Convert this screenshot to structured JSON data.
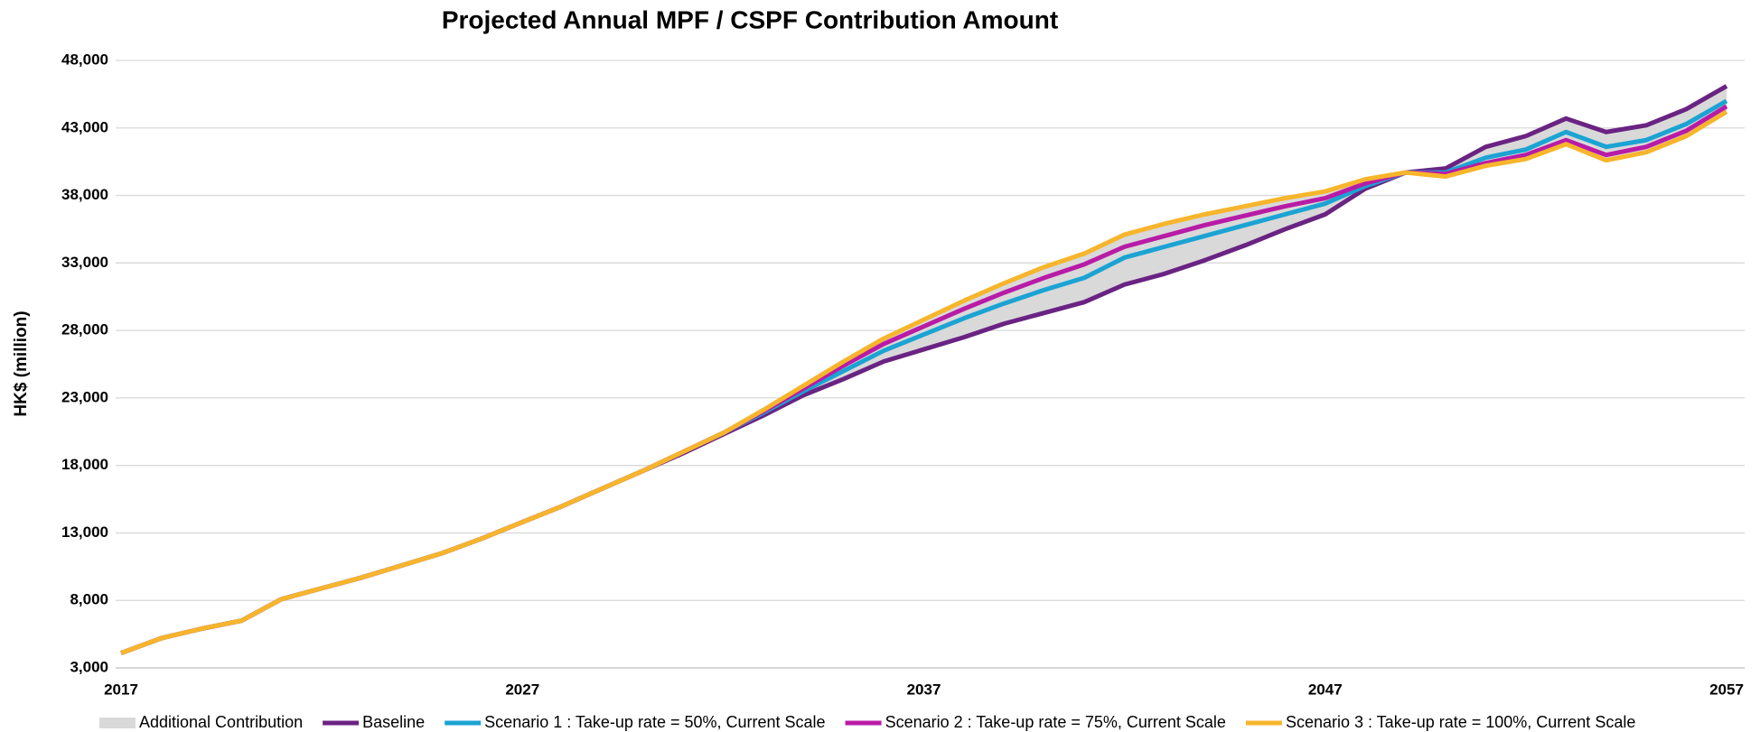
{
  "chart_data": {
    "type": "line",
    "title": "Projected Annual MPF / CSPF Contribution Amount",
    "y_label": "HK$ (million)",
    "x": [
      2017,
      2018,
      2019,
      2020,
      2021,
      2022,
      2023,
      2024,
      2025,
      2026,
      2027,
      2028,
      2029,
      2030,
      2031,
      2032,
      2033,
      2034,
      2035,
      2036,
      2037,
      2038,
      2039,
      2040,
      2041,
      2042,
      2043,
      2044,
      2045,
      2046,
      2047,
      2048,
      2049,
      2050,
      2051,
      2052,
      2053,
      2054,
      2055,
      2056,
      2057
    ],
    "xlim": [
      2017,
      2057
    ],
    "xticks": [
      2017,
      2027,
      2037,
      2047,
      2057
    ],
    "ylim": [
      3000,
      48000
    ],
    "yticks": [
      {
        "value": 3000,
        "label": "3,000"
      },
      {
        "value": 8000,
        "label": "8,000"
      },
      {
        "value": 13000,
        "label": "13,000"
      },
      {
        "value": 18000,
        "label": "18,000"
      },
      {
        "value": 23000,
        "label": "23,000"
      },
      {
        "value": 28000,
        "label": "28,000"
      },
      {
        "value": 33000,
        "label": "33,000"
      },
      {
        "value": 38000,
        "label": "38,000"
      },
      {
        "value": 43000,
        "label": "43,000"
      },
      {
        "value": 48000,
        "label": "48,000"
      }
    ],
    "grid": true,
    "legend": "bottom",
    "band": {
      "name": "Additional Contribution",
      "color": "#d9d9d9"
    },
    "series": [
      {
        "name": "Baseline",
        "color": "#6a2383",
        "values": [
          4100,
          5200,
          5900,
          6500,
          8100,
          8900,
          9700,
          10600,
          11500,
          12600,
          13800,
          15000,
          16300,
          17600,
          18900,
          20300,
          21700,
          23200,
          24400,
          25700,
          26600,
          27500,
          28500,
          29300,
          30100,
          31400,
          32200,
          33200,
          34300,
          35500,
          36600,
          38500,
          39700,
          40000,
          41600,
          42400,
          43700,
          42700,
          43200,
          44400,
          46100
        ]
      },
      {
        "name": "Scenario 1 : Take-up rate = 50%, Current Scale",
        "color": "#1ba3d3",
        "values": [
          4100,
          5200,
          5900,
          6500,
          8100,
          8900,
          9700,
          10600,
          11500,
          12600,
          13800,
          15000,
          16300,
          17600,
          19000,
          20400,
          21900,
          23500,
          25000,
          26500,
          27700,
          28900,
          30000,
          31000,
          31900,
          33400,
          34200,
          35000,
          35800,
          36600,
          37400,
          38700,
          39700,
          39700,
          40800,
          41400,
          42700,
          41600,
          42100,
          43300,
          45000
        ]
      },
      {
        "name": "Scenario 2 : Take-up rate = 75%, Current Scale",
        "color": "#b81ba6",
        "values": [
          4100,
          5200,
          5900,
          6500,
          8100,
          8900,
          9700,
          10600,
          11500,
          12600,
          13800,
          15000,
          16300,
          17600,
          19000,
          20400,
          22000,
          23700,
          25400,
          27000,
          28300,
          29600,
          30800,
          31900,
          32900,
          34200,
          35000,
          35800,
          36500,
          37200,
          37800,
          38900,
          39700,
          39600,
          40400,
          41000,
          42100,
          41000,
          41600,
          42800,
          44600
        ]
      },
      {
        "name": "Scenario 3 : Take-up rate = 100%, Current Scale",
        "color": "#f7b52c",
        "values": [
          4100,
          5200,
          5900,
          6500,
          8100,
          8900,
          9700,
          10600,
          11500,
          12600,
          13800,
          15000,
          16300,
          17600,
          19000,
          20400,
          22100,
          23900,
          25700,
          27400,
          28800,
          30200,
          31500,
          32700,
          33700,
          35100,
          35900,
          36600,
          37200,
          37800,
          38300,
          39200,
          39700,
          39400,
          40200,
          40700,
          41800,
          40600,
          41200,
          42400,
          44200
        ]
      }
    ]
  }
}
